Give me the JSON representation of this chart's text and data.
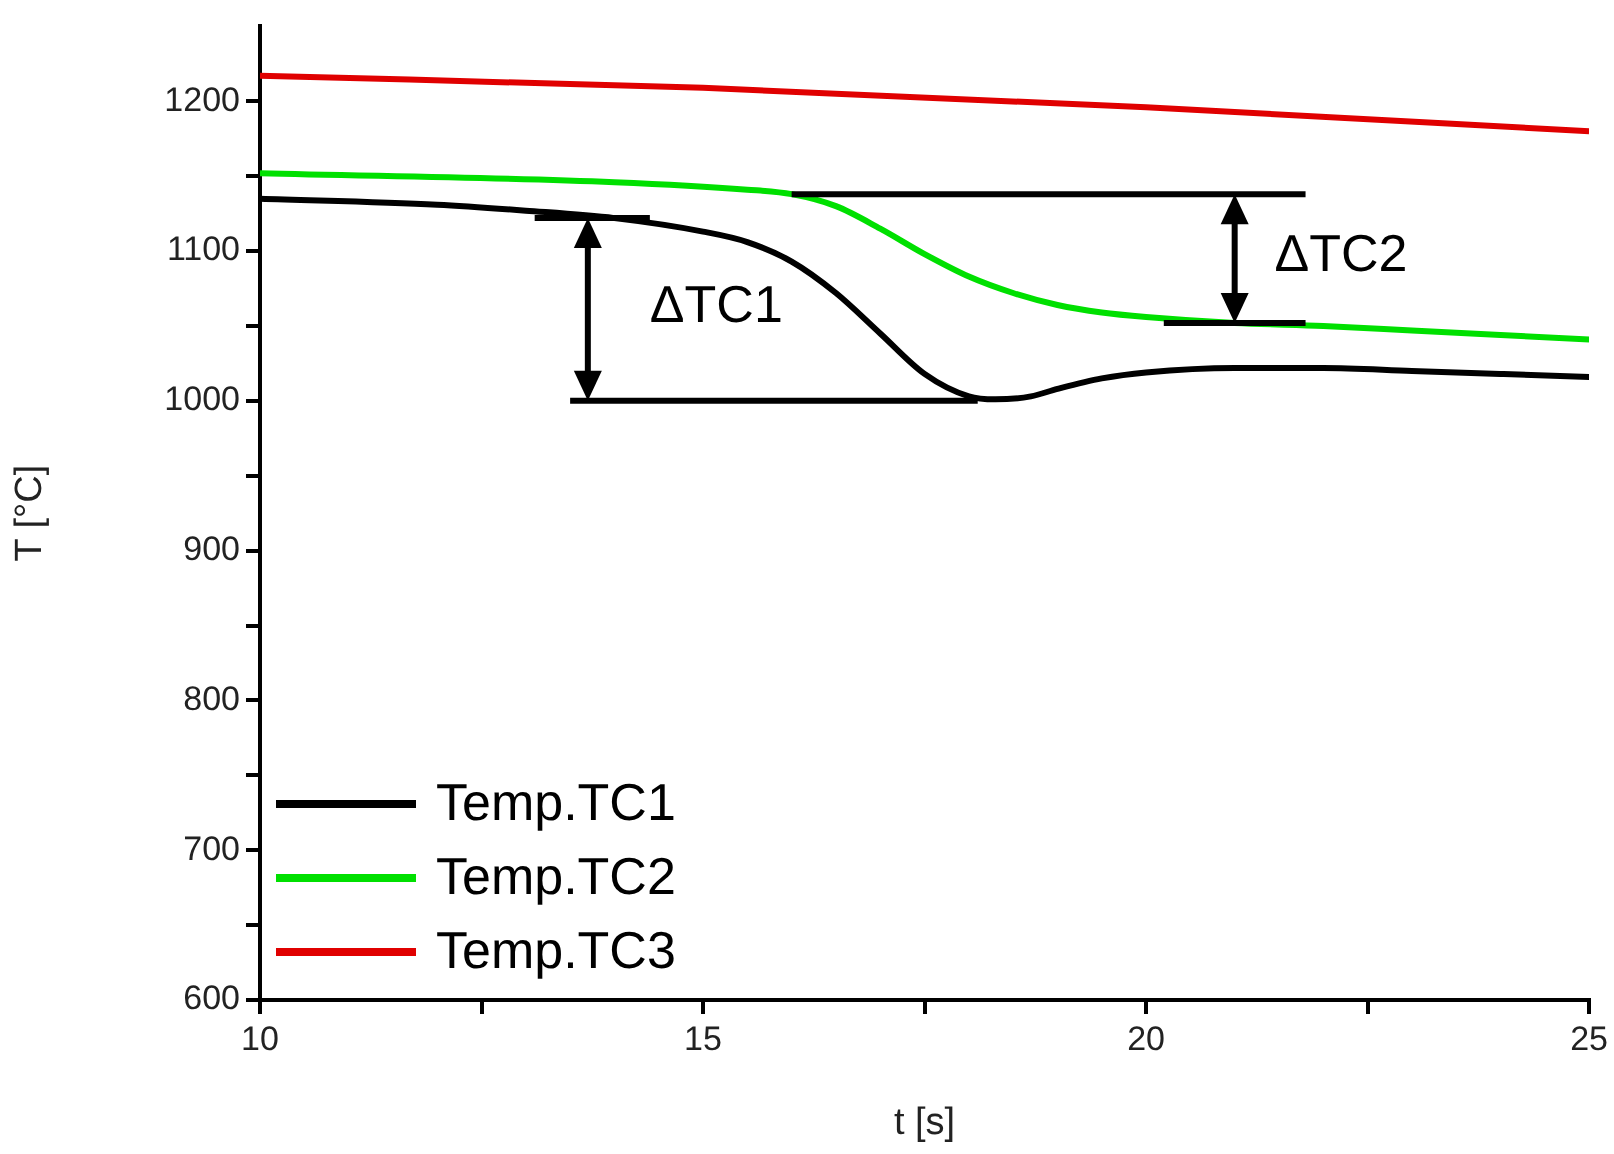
{
  "chart_data": {
    "type": "line",
    "xlabel": "t [s]",
    "ylabel": "T [°C]",
    "xlim": [
      10,
      25
    ],
    "xticks": [
      10,
      {
        "value": 12.5,
        "label": null
      },
      15,
      {
        "value": 17.5,
        "label": null
      },
      20,
      {
        "value": 22.5,
        "label": null
      },
      25
    ],
    "ylim": [
      600,
      1250
    ],
    "yticks": [
      600,
      {
        "value": 650,
        "label": null
      },
      700,
      {
        "value": 750,
        "label": null
      },
      800,
      {
        "value": 850,
        "label": null
      },
      900,
      {
        "value": 950,
        "label": null
      },
      1000,
      {
        "value": 1050,
        "label": null
      },
      1100,
      {
        "value": 1150,
        "label": null
      },
      1200
    ],
    "grid": false,
    "legend": "bottom left",
    "marker": "none",
    "line_style": "solid",
    "annotations": [
      {
        "text": "ΔTC1",
        "x": 14,
        "y": 1122
      },
      {
        "text": "ΔTC2",
        "x": 21,
        "y": 1052
      }
    ],
    "series": [
      {
        "name": "Temp.TC1",
        "color": "#000000",
        "x": [
          10,
          12,
          13,
          14,
          15,
          15.5,
          16,
          16.5,
          17,
          17.5,
          18,
          18.3,
          18.7,
          19,
          19.5,
          20,
          21,
          22,
          23,
          24,
          25
        ],
        "values": [
          1135,
          1131,
          1127,
          1122,
          1113,
          1106,
          1093,
          1072,
          1045,
          1018,
          1003,
          1001,
          1003,
          1008,
          1015,
          1019,
          1022,
          1022,
          1020,
          1018,
          1016
        ]
      },
      {
        "name": "Temp.TC2",
        "color": "#00e000",
        "x": [
          10,
          14,
          15.5,
          16,
          16.5,
          17,
          17.5,
          18,
          18.5,
          19,
          19.5,
          20,
          21,
          22,
          23,
          24,
          25
        ],
        "values": [
          1152,
          1146,
          1141,
          1138,
          1130,
          1115,
          1098,
          1083,
          1072,
          1064,
          1059,
          1056,
          1052,
          1050,
          1047,
          1044,
          1041
        ]
      },
      {
        "name": "Temp.TC3",
        "color": "#e00000",
        "x": [
          10,
          15,
          20,
          25
        ],
        "values": [
          1217,
          1209,
          1196,
          1180
        ]
      }
    ]
  }
}
